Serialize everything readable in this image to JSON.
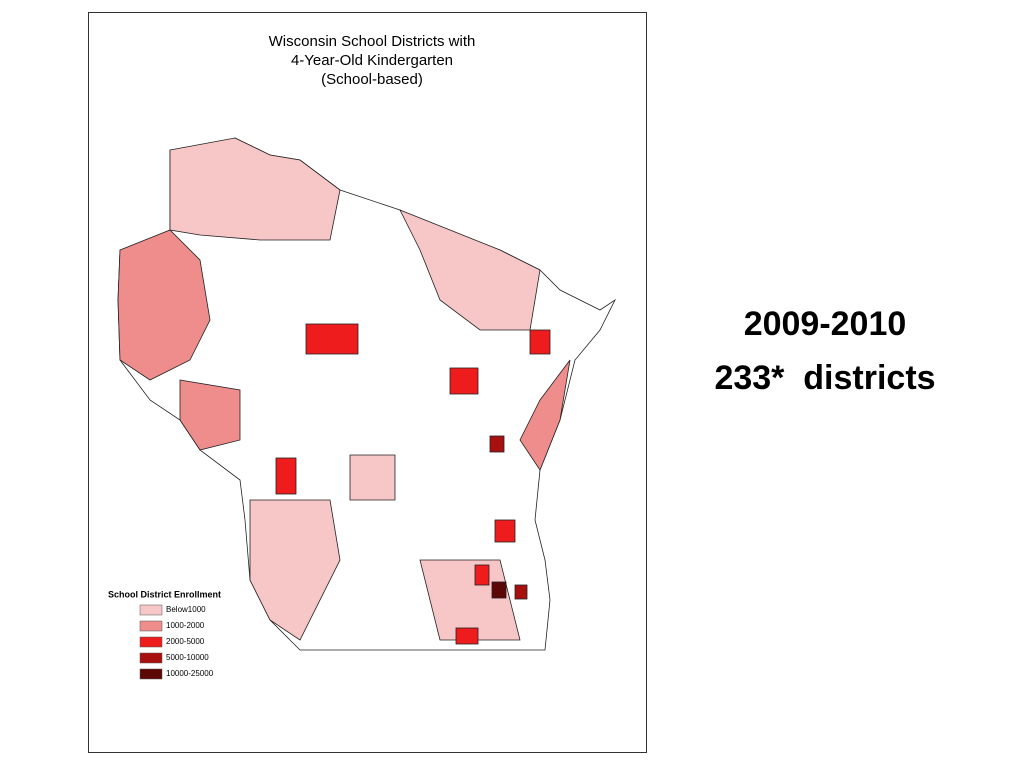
{
  "map": {
    "title": [
      "Wisconsin School Districts with",
      "4-Year-Old Kindergarten",
      "(School-based)"
    ],
    "legend": {
      "title": "School District Enrollment",
      "items": [
        {
          "label": "Below1000",
          "color": "#f7c6c6"
        },
        {
          "label": "1000-2000",
          "color": "#ef8c8c"
        },
        {
          "label": "2000-5000",
          "color": "#ee1c1c"
        },
        {
          "label": "5000-10000",
          "color": "#a81010"
        },
        {
          "label": "10000-25000",
          "color": "#5c0606"
        }
      ]
    }
  },
  "slide": {
    "year": "2009-2010",
    "count": "233*  districts"
  }
}
